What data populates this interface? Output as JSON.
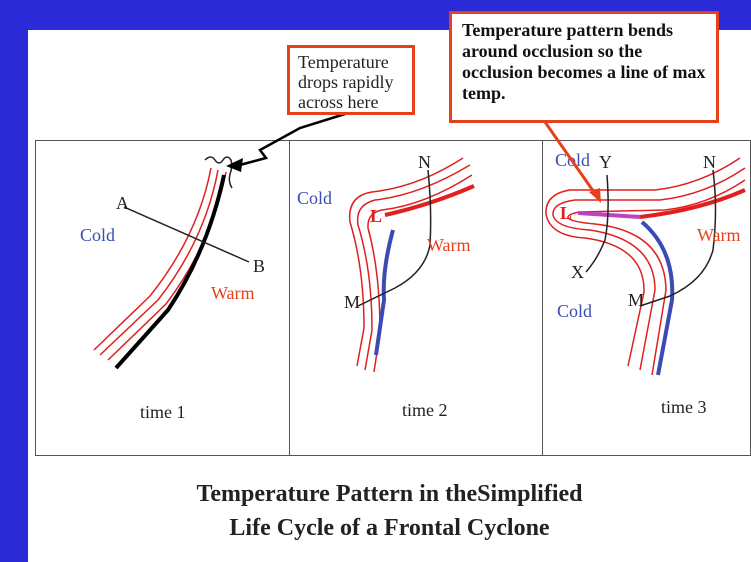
{
  "callouts": {
    "drop": "Temperature drops rapidly across here",
    "occlusion": "Temperature pattern bends around occlusion so the occlusion becomes a line of max temp."
  },
  "panels": [
    {
      "time_label": "time 1",
      "labels": {
        "a": "A",
        "b": "B",
        "cold": "Cold",
        "warm": "Warm"
      }
    },
    {
      "time_label": "time 2",
      "labels": {
        "n": "N",
        "l": "L",
        "m": "M",
        "cold": "Cold",
        "warm": "Warm"
      }
    },
    {
      "time_label": "time 3",
      "labels": {
        "cold_top": "Cold",
        "y": "Y",
        "n": "N",
        "l": "L",
        "warm": "Warm",
        "x": "X",
        "m": "M",
        "cold_bottom": "Cold"
      }
    }
  ],
  "caption": {
    "line1": "Temperature Pattern in theSimplified",
    "line2": "Life Cycle of a Frontal Cyclone"
  },
  "colors": {
    "background": "#2a2ad6",
    "cold_text": "#3a4bb5",
    "warm_text": "#e8401a",
    "warm_front": "#e02020",
    "cold_front": "#3a4bb5",
    "occlusion": "#c040c0",
    "callout_border": "#e8401a"
  }
}
